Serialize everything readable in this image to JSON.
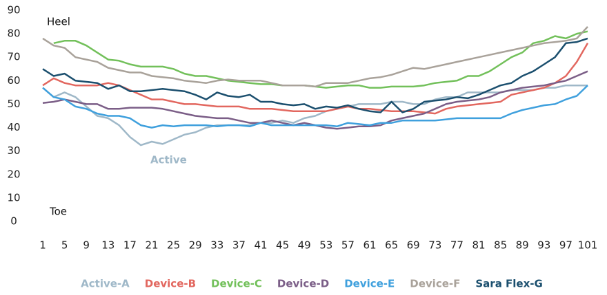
{
  "chart_data": {
    "type": "line",
    "annotations": [
      "Heel",
      "Toe",
      "Active"
    ],
    "x": [
      1,
      3,
      5,
      7,
      9,
      11,
      13,
      15,
      17,
      19,
      21,
      23,
      25,
      27,
      29,
      31,
      33,
      35,
      37,
      39,
      41,
      43,
      45,
      47,
      49,
      51,
      53,
      55,
      57,
      59,
      61,
      63,
      65,
      67,
      69,
      71,
      73,
      75,
      77,
      79,
      81,
      83,
      85,
      87,
      89,
      91,
      93,
      95,
      97,
      99,
      101
    ],
    "xlim": [
      1,
      101
    ],
    "xticks": [
      1,
      5,
      9,
      13,
      17,
      21,
      25,
      29,
      33,
      37,
      41,
      45,
      49,
      53,
      57,
      61,
      65,
      69,
      73,
      77,
      81,
      85,
      89,
      93,
      97,
      101
    ],
    "ylim": [
      0,
      90
    ],
    "yticks": [
      0,
      10,
      20,
      30,
      40,
      50,
      60,
      70,
      80,
      90
    ],
    "grid": false,
    "legend": "bottom",
    "series": [
      {
        "name": "Active-A",
        "color": "#9fb8c8",
        "values": [
          57,
          53,
          55,
          53,
          49,
          45,
          44,
          41,
          36,
          32.5,
          34,
          33,
          35,
          37,
          38,
          40,
          41,
          41,
          41,
          41,
          42,
          42,
          43,
          42,
          44,
          45,
          47,
          48,
          49,
          50,
          50,
          50,
          51,
          51,
          50,
          50,
          52,
          53,
          53,
          55,
          55,
          55,
          55,
          56,
          56,
          56,
          57,
          57,
          58,
          58,
          58
        ]
      },
      {
        "name": "Device-B",
        "color": "#e2675f",
        "values": [
          58,
          61,
          59,
          58,
          58,
          58,
          59,
          58,
          56,
          54,
          52,
          52,
          51,
          50,
          50,
          49.5,
          49,
          49,
          49,
          48,
          48,
          48,
          47.5,
          47,
          47,
          47,
          47,
          48,
          49,
          48,
          48,
          47.5,
          47,
          47,
          47,
          46.5,
          46,
          48,
          49,
          49.5,
          50,
          50.5,
          51,
          54,
          55,
          56,
          57,
          59,
          62,
          68,
          76
        ]
      },
      {
        "name": "Device-C",
        "color": "#72c05a",
        "values": [
          null,
          76,
          77,
          77,
          75,
          72,
          69,
          68.5,
          67,
          66,
          66,
          66,
          65,
          63,
          62,
          62,
          61,
          60,
          59.5,
          59,
          58.5,
          58.5,
          58,
          58,
          58,
          57.5,
          57,
          57.5,
          58,
          58,
          57,
          57,
          57.5,
          57.5,
          57.5,
          58,
          59,
          59.5,
          60,
          62,
          62,
          64,
          67,
          70,
          72,
          76,
          77,
          79,
          78,
          80,
          81
        ]
      },
      {
        "name": "Device-D",
        "color": "#7b5e87",
        "values": [
          50.5,
          51,
          52,
          51,
          50,
          50,
          48,
          48,
          48.5,
          48.5,
          48.5,
          48,
          47,
          46,
          45,
          44.5,
          44,
          44,
          43,
          42,
          42,
          43,
          42,
          41,
          42,
          41,
          40,
          39.5,
          40,
          40.5,
          40.5,
          41,
          43,
          44,
          45,
          46,
          48,
          50,
          51,
          51.5,
          52,
          53,
          55,
          56,
          57,
          57.5,
          58,
          59,
          60,
          62,
          64
        ]
      },
      {
        "name": "Device-E",
        "color": "#3fa0dd",
        "values": [
          57,
          53,
          52,
          49,
          48,
          46,
          45,
          45,
          44,
          41,
          40,
          41,
          40.5,
          41,
          41,
          41,
          40.5,
          41,
          41,
          40.5,
          42,
          41,
          41,
          41,
          41,
          41,
          41,
          40.5,
          42,
          41.5,
          41,
          42,
          42,
          43,
          43,
          43,
          43,
          43.5,
          44,
          44,
          44,
          44,
          44,
          46,
          47.5,
          48.5,
          49.5,
          50,
          52,
          53.5,
          58
        ]
      },
      {
        "name": "Device-F",
        "color": "#a9a29a",
        "values": [
          78,
          75,
          74,
          70,
          69,
          68,
          65.5,
          64.5,
          63.5,
          63.5,
          62,
          61.5,
          61,
          60,
          59.5,
          59,
          60,
          60.5,
          60,
          60,
          60,
          59,
          58,
          58,
          58,
          57.5,
          59,
          59,
          59,
          60,
          61,
          61.5,
          62.5,
          64,
          65.5,
          65,
          66,
          67,
          68,
          69,
          70,
          71,
          72,
          73,
          74,
          75,
          76,
          76.5,
          77,
          78,
          83
        ]
      },
      {
        "name": "Sara Flex-G",
        "color": "#1b4f6e",
        "values": [
          65,
          62,
          63,
          60,
          59.5,
          59,
          56.5,
          58,
          55.5,
          55.5,
          56,
          56.5,
          56,
          55.5,
          54,
          52,
          55,
          53.5,
          53,
          54,
          51,
          51,
          50,
          49.5,
          50,
          48,
          49,
          48.5,
          49.5,
          48,
          47,
          46.5,
          51,
          46.5,
          48,
          51,
          51.5,
          52,
          53,
          52.5,
          54,
          56,
          58,
          59,
          62,
          64,
          67,
          70,
          76,
          76.5,
          78
        ]
      }
    ]
  }
}
